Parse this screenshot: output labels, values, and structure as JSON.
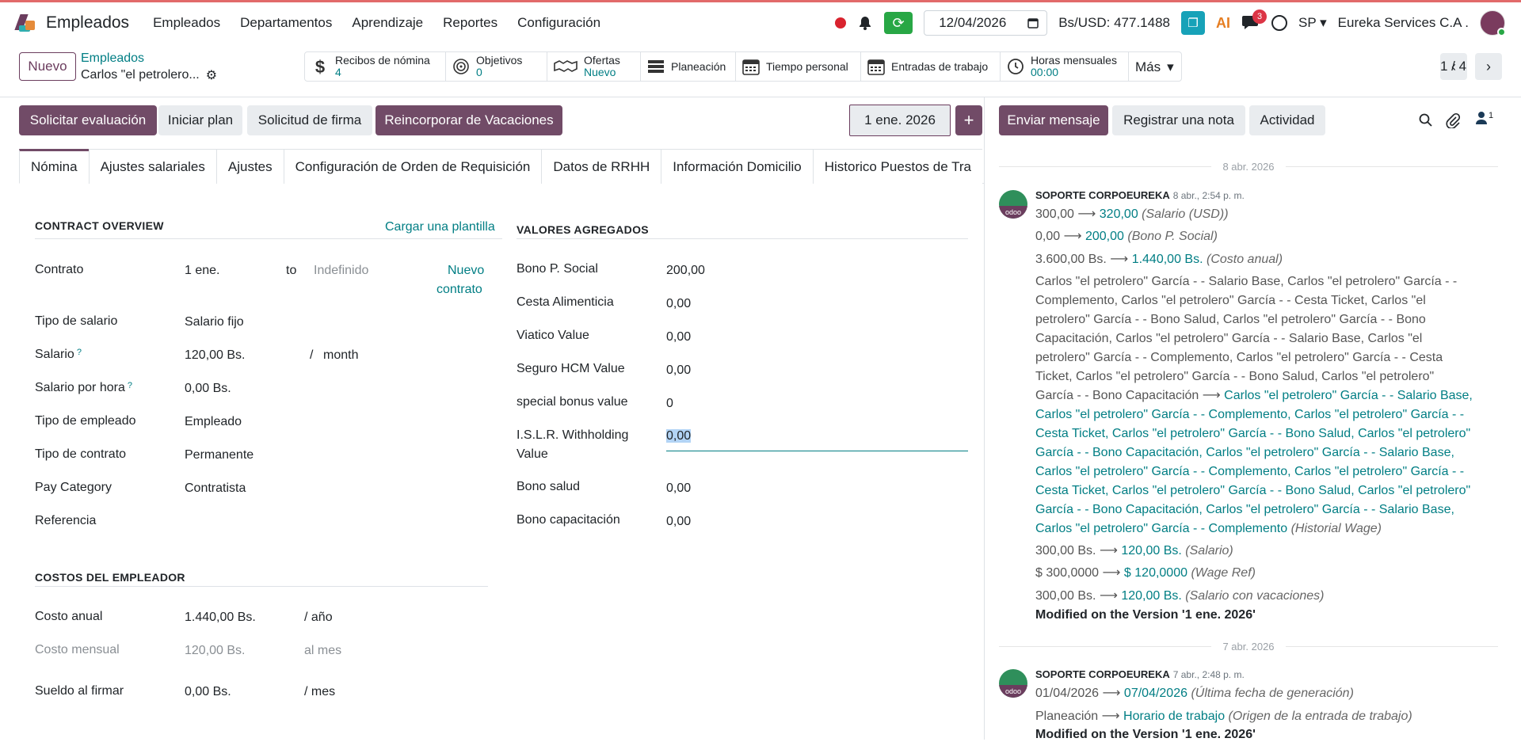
{
  "navbar": {
    "app_title": "Empleados",
    "menu": [
      "Empleados",
      "Departamentos",
      "Aprendizaje",
      "Reportes",
      "Configuración"
    ],
    "date": "12/04/2026",
    "rate": "Bs/USD: 477.1488",
    "chat_count": "3",
    "lang": "SP",
    "company": "Eureka Services C.A ."
  },
  "control": {
    "new_label": "Nuevo",
    "breadcrumb_parent": "Empleados",
    "breadcrumb_current": "Carlos \"el petrolero...",
    "stats": [
      {
        "icon": "dollar-icon",
        "label": "Recibos de nómina",
        "value": "4"
      },
      {
        "icon": "target-icon",
        "label": "Objetivos",
        "value": "0"
      },
      {
        "icon": "handshake-icon",
        "label": "Ofertas",
        "value": "Nuevo"
      },
      {
        "icon": "planning-icon",
        "label": "Planeación",
        "value": ""
      },
      {
        "icon": "calendar-icon",
        "label": "Tiempo personal",
        "value": ""
      },
      {
        "icon": "calendar-icon",
        "label": "Entradas de trabajo",
        "value": ""
      },
      {
        "icon": "clock-icon",
        "label": "Horas mensuales",
        "value": "00:00"
      }
    ],
    "more_label": "Más",
    "pager": "1 / 4"
  },
  "statusbar": {
    "buttons": [
      "Solicitar evaluación",
      "Iniciar plan",
      "Solicitud de firma",
      "Reincorporar de Vacaciones"
    ],
    "version_date": "1 ene. 2026",
    "chatter_buttons": [
      "Enviar mensaje",
      "Registrar una nota",
      "Actividad"
    ],
    "followers": "1"
  },
  "tabs": [
    "Nómina",
    "Ajustes salariales",
    "Ajustes",
    "Configuración de Orden de Requisición",
    "Datos de RRHH",
    "Información Domicilio",
    "Historico Puestos de Tra"
  ],
  "contract_overview": {
    "title": "CONTRACT OVERVIEW",
    "load_template": "Cargar una plantilla",
    "contrato_label": "Contrato",
    "contrato_start": "1 ene.",
    "to": "to",
    "contrato_end": "Indefinido",
    "new_contract_1": "Nuevo",
    "new_contract_2": "contrato",
    "tipo_salario_label": "Tipo de salario",
    "tipo_salario": "Salario fijo",
    "salario_label": "Salario",
    "salario": "120,00 Bs.",
    "slash": "/",
    "salario_period": "month",
    "salario_hora_label": "Salario por hora",
    "salario_hora": "0,00 Bs.",
    "tipo_empleado_label": "Tipo de empleado",
    "tipo_empleado": "Empleado",
    "tipo_contrato_label": "Tipo de contrato",
    "tipo_contrato": "Permanente",
    "pay_category_label": "Pay Category",
    "pay_category": "Contratista",
    "referencia_label": "Referencia",
    "help": "?"
  },
  "valores": {
    "title": "VALORES AGREGADOS",
    "rows": [
      {
        "label": "Bono P. Social",
        "value": "200,00"
      },
      {
        "label": "Cesta Alimenticia",
        "value": "0,00"
      },
      {
        "label": "Viatico Value",
        "value": "0,00"
      },
      {
        "label": "Seguro HCM Value",
        "value": "0,00"
      },
      {
        "label": "special bonus value",
        "value": "0"
      }
    ],
    "islr_label_1": "I.S.L.R. Withholding",
    "islr_label_2": "Value",
    "islr_value": "0,00",
    "bono_salud_label": "Bono salud",
    "bono_salud": "0,00",
    "bono_cap_label": "Bono capacitación",
    "bono_cap": "0,00"
  },
  "costos": {
    "title": "COSTOS DEL EMPLEADOR",
    "anual_label": "Costo anual",
    "anual": "1.440,00 Bs.",
    "anual_period": "/ año",
    "mensual_label": "Costo mensual",
    "mensual": "120,00 Bs.",
    "mensual_period": "al mes",
    "firmar_label": "Sueldo al firmar",
    "firmar": "0,00 Bs.",
    "firmar_period": "/ mes"
  },
  "chatter": {
    "date1": "8 abr. 2026",
    "msg1": {
      "author": "SOPORTE CORPOEUREKA",
      "time": "8 abr., 2:54 p. m.",
      "t1": {
        "old": "300,00",
        "new": "320,00",
        "field": "(Salario (USD))"
      },
      "t2": {
        "old": "0,00",
        "new": "200,00",
        "field": "(Bono P. Social)"
      },
      "t3": {
        "old": "3.600,00 Bs.",
        "new": "1.440,00 Bs.",
        "field": "(Costo anual)"
      },
      "w_old": [
        "Carlos \"el petrolero\" García - - Salario Base, Carlos \"el petrolero\" García - -",
        "Complemento, Carlos \"el petrolero\" García - - Cesta Ticket, Carlos \"el",
        "petrolero\" García - - Bono Salud, Carlos \"el petrolero\" García - - Bono",
        "Capacitación, Carlos \"el petrolero\" García - - Salario Base, Carlos \"el",
        "petrolero\" García - - Complemento, Carlos \"el petrolero\" García - - Cesta",
        "Ticket, Carlos \"el petrolero\" García - - Bono Salud, Carlos \"el petrolero\""
      ],
      "w_old_last": "García - - Bono Capacitación",
      "w_new_first": "Carlos \"el petrolero\" García - - Salario Base,",
      "w_new": [
        "Carlos \"el petrolero\" García - - Complemento, Carlos \"el petrolero\" García - -",
        "Cesta Ticket, Carlos \"el petrolero\" García - - Bono Salud, Carlos \"el petrolero\"",
        "García - - Bono Capacitación, Carlos \"el petrolero\" García - - Salario Base,",
        "Carlos \"el petrolero\" García - - Complemento, Carlos \"el petrolero\" García - -",
        "Cesta Ticket, Carlos \"el petrolero\" García - - Bono Salud, Carlos \"el petrolero\"",
        "García - - Bono Capacitación, Carlos \"el petrolero\" García - - Salario Base,"
      ],
      "w_new_last": "Carlos \"el petrolero\" García - - Complemento",
      "w_field": "(Historial Wage)",
      "t5": {
        "old": "300,00 Bs.",
        "new": "120,00 Bs.",
        "field": "(Salario)"
      },
      "t6": {
        "old": "$ 300,0000",
        "new": "$ 120,0000",
        "field": "(Wage Ref)"
      },
      "t7": {
        "old": "300,00 Bs.",
        "new": "120,00 Bs.",
        "field": "(Salario con vacaciones)"
      },
      "modified": "Modified on the Version '1 ene. 2026'"
    },
    "date2": "7 abr. 2026",
    "msg2": {
      "author": "SOPORTE CORPOEUREKA",
      "time": "7 abr., 2:48 p. m.",
      "t1": {
        "old": "01/04/2026",
        "new": "07/04/2026",
        "field": "(Última fecha de generación)"
      },
      "t2": {
        "old": "Planeación",
        "new": "Horario de trabajo",
        "field": "(Origen de la entrada de trabajo)"
      },
      "modified": "Modified on the Version '1 ene. 2026'"
    },
    "avatar_text": "odoo"
  }
}
